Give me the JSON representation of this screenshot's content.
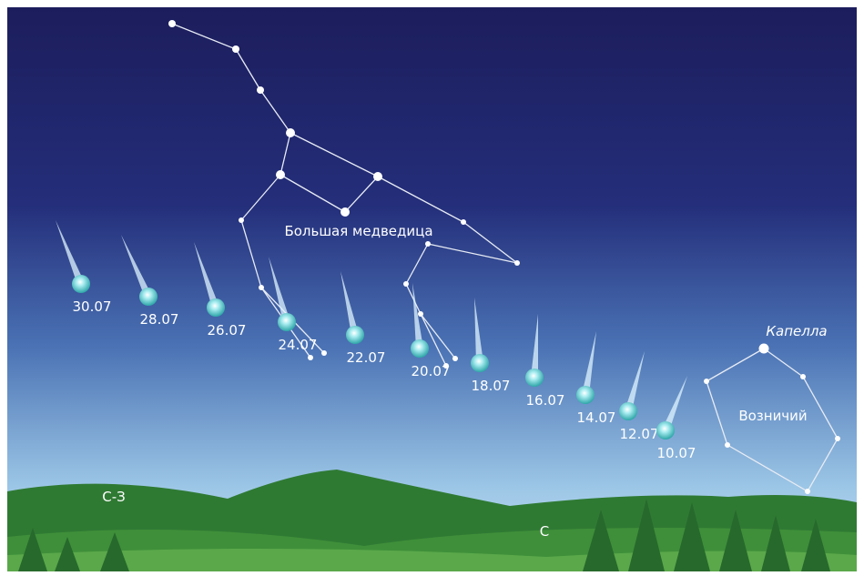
{
  "labels": {
    "constellation_1": "Большая медведица",
    "star": "Капелла",
    "constellation_2": "Возничий",
    "direction_1": "С-З",
    "direction_2": "С"
  },
  "comet_dates": [
    "30.07",
    "28.07",
    "26.07",
    "24.07",
    "22.07",
    "20.07",
    "18.07",
    "16.07",
    "14.07",
    "12.07",
    "10.07"
  ]
}
